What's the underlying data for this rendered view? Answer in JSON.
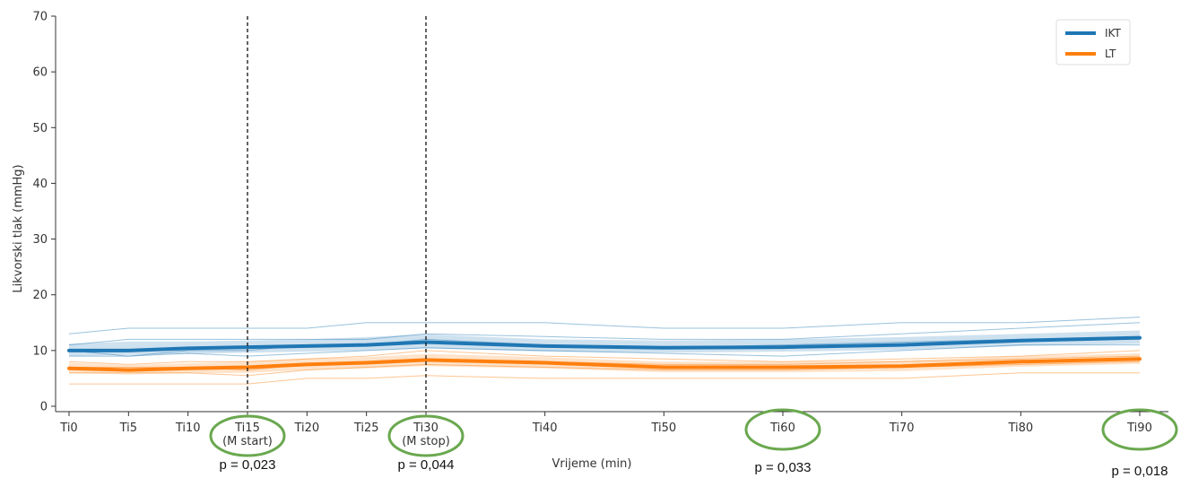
{
  "chart_data": {
    "type": "line",
    "xlabel": "Vrijeme (min)",
    "ylabel": "Likvorski tlak (mmHg)",
    "ylim": [
      0,
      70
    ],
    "yticks": [
      0,
      10,
      20,
      30,
      40,
      50,
      60,
      70
    ],
    "x_minutes": [
      0,
      5,
      10,
      15,
      20,
      25,
      30,
      40,
      50,
      60,
      70,
      80,
      90
    ],
    "categories": [
      "Ti0",
      "Ti5",
      "Ti10",
      "Ti15",
      "Ti20",
      "Ti25",
      "Ti30",
      "Ti40",
      "Ti50",
      "Ti60",
      "Ti70",
      "Ti80",
      "Ti90"
    ],
    "tick_sublabels": {
      "Ti15": "(M start)",
      "Ti30": "(M stop)"
    },
    "event_lines_minutes": [
      15,
      30
    ],
    "legend_position": "top-right",
    "grid": false,
    "series": [
      {
        "name": "IKT",
        "color": "#1f77b4",
        "values": [
          10.0,
          10.0,
          10.4,
          10.6,
          10.8,
          11.0,
          11.5,
          10.8,
          10.5,
          10.6,
          11.0,
          11.8,
          12.3
        ],
        "band_lower": [
          9.0,
          9.2,
          9.4,
          9.6,
          9.8,
          10.0,
          10.4,
          9.8,
          9.6,
          9.8,
          10.1,
          10.8,
          11.2
        ],
        "band_upper": [
          11.2,
          11.6,
          11.6,
          11.8,
          12.0,
          12.4,
          12.9,
          12.0,
          11.8,
          12.0,
          12.4,
          13.0,
          13.6
        ],
        "individual_curves": [
          [
            13.0,
            14.0,
            14.0,
            14.0,
            14.0,
            15.0,
            15.0,
            15.0,
            14.0,
            14.0,
            15.0,
            15.0,
            16.0
          ],
          [
            11.0,
            12.0,
            12.0,
            12.0,
            12.0,
            12.0,
            13.0,
            12.5,
            12.0,
            12.0,
            13.0,
            14.0,
            15.0
          ],
          [
            10.0,
            9.0,
            10.0,
            10.0,
            11.0,
            11.0,
            12.0,
            11.0,
            10.5,
            11.0,
            11.5,
            12.0,
            12.0
          ],
          [
            9.0,
            9.0,
            9.5,
            9.0,
            9.5,
            10.0,
            10.5,
            10.0,
            9.5,
            9.0,
            10.0,
            11.0,
            11.0
          ]
        ]
      },
      {
        "name": "LT",
        "color": "#ff7f0e",
        "values": [
          6.8,
          6.5,
          6.8,
          7.0,
          7.5,
          7.8,
          8.3,
          7.8,
          7.0,
          7.0,
          7.2,
          8.0,
          8.5
        ],
        "band_lower": [
          5.9,
          5.7,
          5.9,
          6.0,
          6.5,
          6.8,
          7.2,
          6.8,
          6.1,
          6.1,
          6.3,
          7.1,
          7.6
        ],
        "band_upper": [
          7.8,
          7.4,
          7.7,
          8.0,
          8.6,
          8.8,
          9.4,
          8.8,
          8.0,
          8.0,
          8.2,
          9.0,
          9.5
        ],
        "individual_curves": [
          [
            4.0,
            4.0,
            4.0,
            4.0,
            5.0,
            5.0,
            5.5,
            5.0,
            5.0,
            5.0,
            5.0,
            6.0,
            6.0
          ],
          [
            8.0,
            7.5,
            8.0,
            8.0,
            8.5,
            9.0,
            10.0,
            9.0,
            8.5,
            8.0,
            8.5,
            9.0,
            10.0
          ],
          [
            7.0,
            7.0,
            7.0,
            6.5,
            7.5,
            8.0,
            8.5,
            8.0,
            7.5,
            7.5,
            8.0,
            8.5,
            9.0
          ],
          [
            6.0,
            6.0,
            6.0,
            5.5,
            6.5,
            7.0,
            7.5,
            7.0,
            6.5,
            6.5,
            7.0,
            7.5,
            8.0
          ]
        ]
      }
    ],
    "annotations": [
      {
        "category": "Ti15",
        "text": "p = 0,023"
      },
      {
        "category": "Ti30",
        "text": "p = 0,044"
      },
      {
        "category": "Ti60",
        "text": "p = 0,033"
      },
      {
        "category": "Ti90",
        "text": "p = 0,018"
      }
    ],
    "highlight_color": "#6aa84f"
  }
}
